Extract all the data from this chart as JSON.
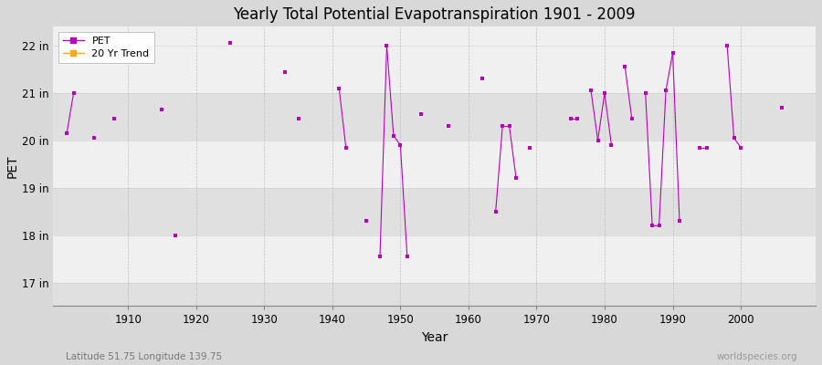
{
  "title": "Yearly Total Potential Evapotranspiration 1901 - 2009",
  "xlabel": "Year",
  "ylabel": "PET",
  "background_color": "#d8d8d8",
  "plot_bg_color": "#e8e8e8",
  "line_color": "#bb00bb",
  "marker_color": "#bb00bb",
  "trend_color": "#ffaa00",
  "ylim": [
    16.5,
    22.4
  ],
  "yticks": [
    17,
    18,
    19,
    20,
    21,
    22
  ],
  "ytick_labels": [
    "17 in",
    "18 in",
    "19 in",
    "20 in",
    "21 in",
    "22 in"
  ],
  "xlim": [
    1899,
    2011
  ],
  "xticks": [
    1910,
    1920,
    1930,
    1940,
    1950,
    1960,
    1970,
    1980,
    1990,
    2000
  ],
  "bottom_left_text": "Latitude 51.75 Longitude 139.75",
  "bottom_right_text": "worldspecies.org",
  "pet_data": {
    "1901": 20.15,
    "1902": 21.0,
    "1905": 20.05,
    "1908": 20.45,
    "1915": 20.65,
    "1917": 18.0,
    "1925": 22.05,
    "1933": 21.45,
    "1935": 20.45,
    "1941": 21.1,
    "1942": 19.85,
    "1945": 18.3,
    "1947": 17.55,
    "1948": 22.0,
    "1949": 20.1,
    "1950": 19.9,
    "1951": 17.55,
    "1953": 20.55,
    "1957": 20.3,
    "1962": 21.3,
    "1964": 18.5,
    "1965": 20.3,
    "1966": 20.3,
    "1967": 19.2,
    "1969": 19.85,
    "1975": 20.45,
    "1976": 20.45,
    "1978": 21.05,
    "1979": 20.0,
    "1980": 21.0,
    "1981": 19.9,
    "1983": 21.55,
    "1984": 20.45,
    "1986": 21.0,
    "1987": 18.2,
    "1988": 18.2,
    "1989": 21.05,
    "1990": 21.85,
    "1991": 18.3,
    "1994": 19.85,
    "1995": 19.85,
    "1998": 22.0,
    "1999": 20.05,
    "2000": 19.85,
    "2006": 20.7
  }
}
